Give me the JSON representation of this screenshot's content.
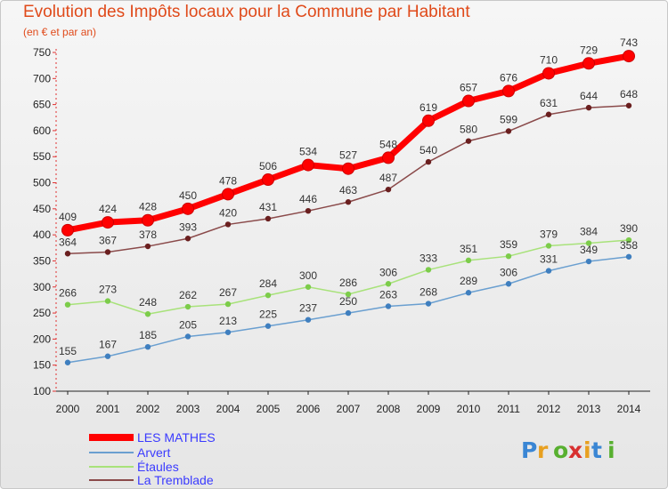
{
  "chart_data": {
    "type": "line",
    "title": "Evolution des Impôts locaux pour la Commune par Habitant",
    "subtitle": "(en € et par an)",
    "xlabel": "",
    "ylabel": "",
    "ylim": [
      100,
      750
    ],
    "yticks": [
      100,
      150,
      200,
      250,
      300,
      350,
      400,
      450,
      500,
      550,
      600,
      650,
      700,
      750
    ],
    "categories": [
      "2000",
      "2001",
      "2002",
      "2003",
      "2004",
      "2005",
      "2006",
      "2007",
      "2008",
      "2009",
      "2010",
      "2011",
      "2012",
      "2013",
      "2014"
    ],
    "series": [
      {
        "name": "LES MATHES",
        "color": "#ff0000",
        "point_color": "#ff0000",
        "values": [
          409,
          424,
          428,
          450,
          478,
          506,
          534,
          527,
          548,
          619,
          657,
          676,
          710,
          729,
          743
        ]
      },
      {
        "name": "Arvert",
        "color": "#6a9fd0",
        "point_color": "#3f7fbf",
        "values": [
          155,
          167,
          185,
          205,
          213,
          225,
          237,
          250,
          263,
          268,
          289,
          306,
          331,
          349,
          358
        ]
      },
      {
        "name": "Étaules",
        "color": "#a8e27a",
        "point_color": "#7ccc4a",
        "values": [
          266,
          273,
          248,
          262,
          267,
          284,
          300,
          286,
          306,
          333,
          351,
          359,
          379,
          384,
          390
        ]
      },
      {
        "name": "La Tremblade",
        "color": "#8a4a4a",
        "point_color": "#6a1f1f",
        "values": [
          364,
          367,
          378,
          393,
          420,
          431,
          446,
          463,
          487,
          540,
          580,
          599,
          631,
          644,
          648
        ]
      }
    ],
    "legend": "bottom-left",
    "grid": false
  },
  "brand": {
    "logo_text": "Proxiti"
  }
}
